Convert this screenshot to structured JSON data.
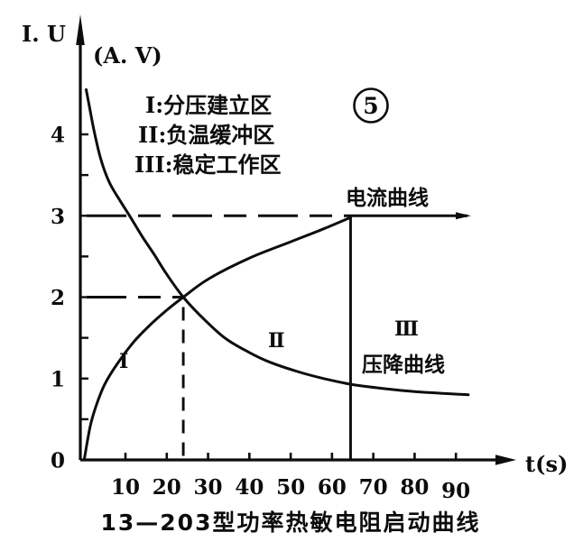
{
  "figure": {
    "y_axis_title": "I. U",
    "y_axis_units": "(A. V)",
    "x_axis_title": "t(s)",
    "figure_number": "5",
    "current_curve_label": "电流曲线",
    "voltage_curve_label": "压降曲线",
    "caption": "13—203型功率热敏电阻启动曲线",
    "legend": {
      "line1": "I:分压建立区",
      "line2": "II:负温缓冲区",
      "line3": "III:稳定工作区"
    },
    "region_labels": {
      "r1": "I",
      "r2": "II",
      "r3": "III"
    }
  },
  "chart_data": {
    "type": "line",
    "title": "13—203型功率热敏电阻启动曲线",
    "xlabel": "t(s)",
    "ylabel": "I. U (A. V)",
    "xlim": [
      0,
      100
    ],
    "ylim": [
      0,
      5
    ],
    "grid": false,
    "x_ticks": [
      10,
      20,
      30,
      40,
      50,
      60,
      70,
      80,
      90
    ],
    "y_ticks": [
      0,
      1,
      2,
      3,
      4
    ],
    "y_minor_tick_step": 0.5,
    "series": [
      {
        "name": "电流曲线",
        "points": [
          [
            0,
            0
          ],
          [
            1.5,
            0.42
          ],
          [
            3,
            0.68
          ],
          [
            5,
            0.93
          ],
          [
            8,
            1.18
          ],
          [
            12,
            1.45
          ],
          [
            16,
            1.66
          ],
          [
            20,
            1.84
          ],
          [
            24,
            2.0
          ],
          [
            30,
            2.22
          ],
          [
            40,
            2.48
          ],
          [
            50,
            2.68
          ],
          [
            58,
            2.84
          ],
          [
            64.5,
            2.98
          ]
        ]
      },
      {
        "name": "压降曲线",
        "points": [
          [
            0.5,
            4.55
          ],
          [
            1.5,
            4.28
          ],
          [
            2.5,
            4.02
          ],
          [
            4,
            3.7
          ],
          [
            6,
            3.42
          ],
          [
            8.5,
            3.2
          ],
          [
            11,
            3.0
          ],
          [
            14,
            2.75
          ],
          [
            17,
            2.52
          ],
          [
            20,
            2.28
          ],
          [
            24,
            2.0
          ],
          [
            28,
            1.78
          ],
          [
            34,
            1.5
          ],
          [
            40,
            1.32
          ],
          [
            45,
            1.2
          ],
          [
            52,
            1.08
          ],
          [
            58,
            1.0
          ],
          [
            64.5,
            0.93
          ],
          [
            72,
            0.88
          ],
          [
            80,
            0.84
          ],
          [
            93,
            0.8
          ]
        ]
      }
    ],
    "reference_lines": [
      {
        "orient": "h",
        "value": 3,
        "from": 0.6,
        "to": 64.5,
        "style": "dashed"
      },
      {
        "orient": "h",
        "value": 3,
        "from": 64.5,
        "to": 92.8,
        "style": "solid",
        "arrow_end": true
      },
      {
        "orient": "h",
        "value": 2,
        "from": 0.6,
        "to": 24,
        "style": "dashed"
      },
      {
        "orient": "v",
        "value": 24,
        "from": 0.05,
        "to": 1.95,
        "style": "dashed"
      },
      {
        "orient": "v",
        "value": 64.5,
        "from": 0,
        "to": 2.97,
        "style": "solid"
      }
    ],
    "key_points": {
      "crossover_t_u": [
        24,
        2
      ],
      "steady_current_t_u": [
        64.5,
        3
      ]
    },
    "regions": [
      {
        "label": "I",
        "meaning": "分压建立区",
        "t_range": [
          0,
          24
        ]
      },
      {
        "label": "II",
        "meaning": "负温缓冲区",
        "t_range": [
          24,
          64.5
        ]
      },
      {
        "label": "III",
        "meaning": "稳定工作区",
        "t_range": [
          64.5,
          100
        ]
      }
    ]
  }
}
